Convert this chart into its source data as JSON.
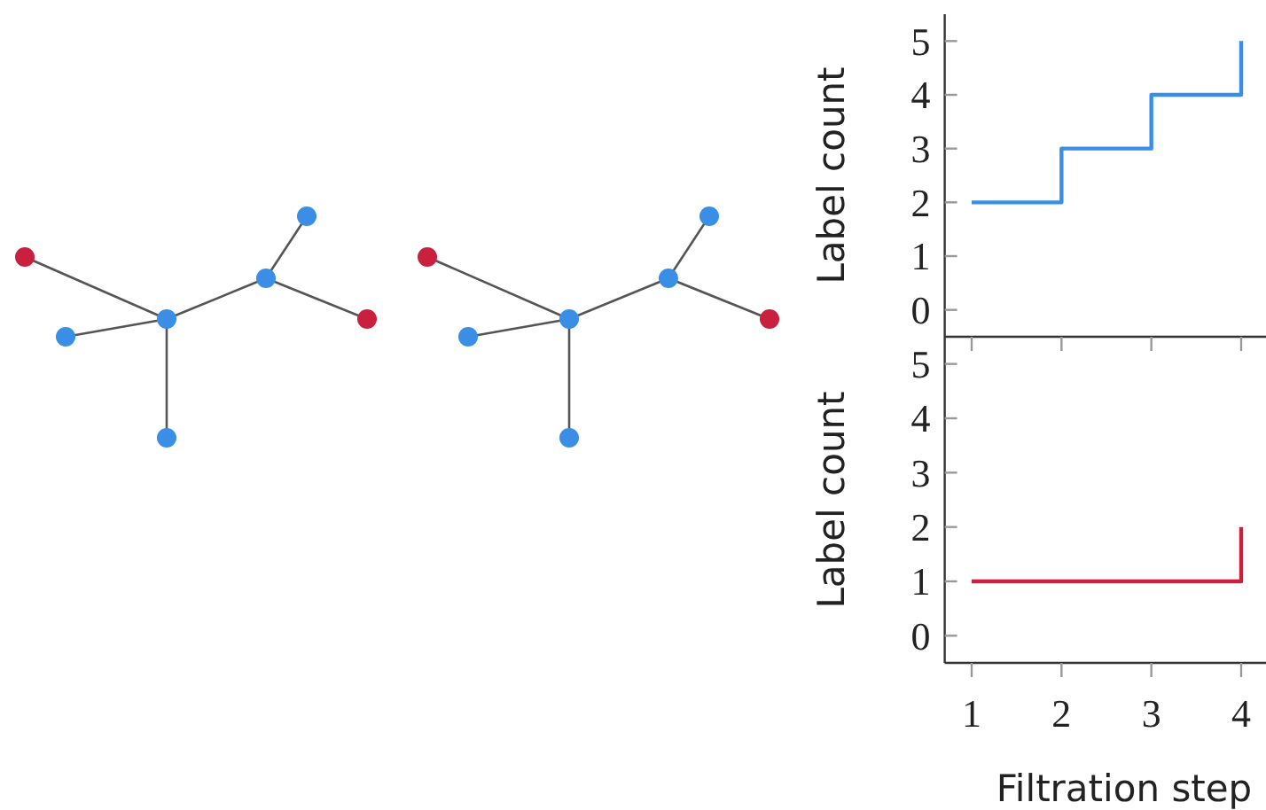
{
  "chart_data": [
    {
      "type": "step",
      "ylabel": "Label count",
      "x": [
        1,
        2,
        3,
        4
      ],
      "xlim": [
        0.7,
        4.3
      ],
      "xticks": [
        1,
        2,
        3,
        4
      ],
      "ylim": [
        -0.5,
        5.5
      ],
      "yticks": [
        0,
        1,
        2,
        3,
        4,
        5
      ],
      "tick_labels": "y",
      "grid": false,
      "series": [
        {
          "color": "#3a8ee6",
          "values": [
            2,
            3,
            4,
            5
          ]
        }
      ]
    },
    {
      "type": "step",
      "ylabel": "Label count",
      "xlabel": "Filtration step",
      "x": [
        1,
        2,
        3,
        4
      ],
      "xlim": [
        0.7,
        4.3
      ],
      "xticks": [
        1,
        2,
        3,
        4
      ],
      "ylim": [
        -0.5,
        5.5
      ],
      "yticks": [
        0,
        1,
        2,
        3,
        4,
        5
      ],
      "grid": false,
      "series": [
        {
          "color": "#c8203e",
          "values": [
            1,
            1,
            1,
            2
          ]
        }
      ]
    }
  ]
}
